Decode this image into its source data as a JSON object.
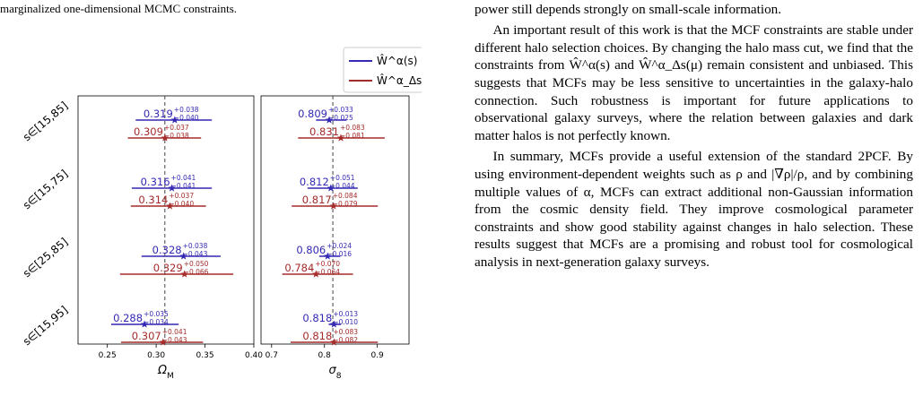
{
  "caption_tail": "marginalized one-dimensional MCMC constraints.",
  "paragraphs": [
    "is less sensitive to the choice of maximum scale, although its constraining power still depends strongly on small-scale information.",
    "An important result of this work is that the MCF constraints are stable under different halo selection choices. By changing the halo mass cut, we find that the constraints from Ŵ^α(s) and Ŵ^α_Δs(μ) remain consistent and unbiased. This suggests that MCFs may be less sensitive to uncertainties in the galaxy-halo connection. Such robustness is important for future applications to observational galaxy surveys, where the relation between galaxies and dark matter halos is not perfectly known.",
    "In summary, MCFs provide a useful extension of the standard 2PCF. By using environment-dependent weights such as ρ and |∇ρ|/ρ, and by combining multiple values of α, MCFs can extract additional non-Gaussian information from the cosmic density field. They improve cosmological parameter constraints and show good stability against changes in halo selection. These results suggest that MCFs are a promising and robust tool for cosmological analysis in next-generation galaxy surveys."
  ],
  "chart_data": {
    "type": "forest",
    "legend": {
      "placement": "top-right",
      "entries": [
        {
          "label": "Ŵ^α(s)",
          "color": "#3329b4"
        },
        {
          "label": "Ŵ^α_Δs(μ)",
          "color": "#a52a2a"
        }
      ]
    },
    "rows": [
      "s∈[15,85]",
      "s∈[15,75]",
      "s∈[25,85]",
      "s∈[15,95]"
    ],
    "panels": [
      {
        "xlabel": "Ω_M",
        "xlim": [
          0.22,
          0.4
        ],
        "ticks": [
          0.25,
          0.3,
          0.35,
          0.4
        ],
        "tick_labels": [
          "0.25",
          "0.30",
          "0.35",
          "0.40"
        ],
        "fiducial": 0.3089,
        "series": [
          {
            "name": "Ŵ^α(s)",
            "color": "#3329b4",
            "points": [
              {
                "value": 0.319,
                "plus": 0.038,
                "minus": 0.04,
                "label": "0.319",
                "up": "+0.038",
                "down": "−0.040"
              },
              {
                "value": 0.316,
                "plus": 0.041,
                "minus": 0.041,
                "label": "0.316",
                "up": "+0.041",
                "down": "−0.041"
              },
              {
                "value": 0.328,
                "plus": 0.038,
                "minus": 0.043,
                "label": "0.328",
                "up": "+0.038",
                "down": "−0.043"
              },
              {
                "value": 0.288,
                "plus": 0.035,
                "minus": 0.034,
                "label": "0.288",
                "up": "+0.035",
                "down": "−0.034"
              }
            ]
          },
          {
            "name": "Ŵ^α_Δs(μ)",
            "color": "#a52a2a",
            "points": [
              {
                "value": 0.309,
                "plus": 0.037,
                "minus": 0.038,
                "label": "0.309",
                "up": "+0.037",
                "down": "−0.038"
              },
              {
                "value": 0.314,
                "plus": 0.037,
                "minus": 0.04,
                "label": "0.314",
                "up": "+0.037",
                "down": "−0.040"
              },
              {
                "value": 0.329,
                "plus": 0.05,
                "minus": 0.066,
                "label": "0.329",
                "up": "+0.050",
                "down": "−0.066"
              },
              {
                "value": 0.307,
                "plus": 0.041,
                "minus": 0.043,
                "label": "0.307",
                "up": "+0.041",
                "down": "−0.043"
              }
            ]
          }
        ]
      },
      {
        "xlabel": "σ_8",
        "xlim": [
          0.68,
          0.96
        ],
        "ticks": [
          0.7,
          0.8,
          0.9
        ],
        "tick_labels": [
          "0.7",
          "0.8",
          "0.9"
        ],
        "fiducial": 0.8159,
        "series": [
          {
            "name": "Ŵ^α(s)",
            "color": "#3329b4",
            "points": [
              {
                "value": 0.809,
                "plus": 0.033,
                "minus": 0.025,
                "label": "0.809",
                "up": "+0.033",
                "down": "−0.025"
              },
              {
                "value": 0.812,
                "plus": 0.051,
                "minus": 0.044,
                "label": "0.812",
                "up": "+0.051",
                "down": "−0.044"
              },
              {
                "value": 0.806,
                "plus": 0.024,
                "minus": 0.016,
                "label": "0.806",
                "up": "+0.024",
                "down": "−0.016"
              },
              {
                "value": 0.818,
                "plus": 0.013,
                "minus": 0.01,
                "label": "0.818",
                "up": "+0.013",
                "down": "−0.010"
              }
            ]
          },
          {
            "name": "Ŵ^α_Δs(μ)",
            "color": "#a52a2a",
            "points": [
              {
                "value": 0.831,
                "plus": 0.083,
                "minus": 0.081,
                "label": "0.831",
                "up": "+0.083",
                "down": "−0.081"
              },
              {
                "value": 0.817,
                "plus": 0.084,
                "minus": 0.079,
                "label": "0.817",
                "up": "+0.084",
                "down": "−0.079"
              },
              {
                "value": 0.784,
                "plus": 0.07,
                "minus": 0.064,
                "label": "0.784",
                "up": "+0.070",
                "down": "−0.064"
              },
              {
                "value": 0.818,
                "plus": 0.083,
                "minus": 0.082,
                "label": "0.818",
                "up": "+0.083",
                "down": "−0.082"
              }
            ]
          }
        ]
      }
    ]
  }
}
